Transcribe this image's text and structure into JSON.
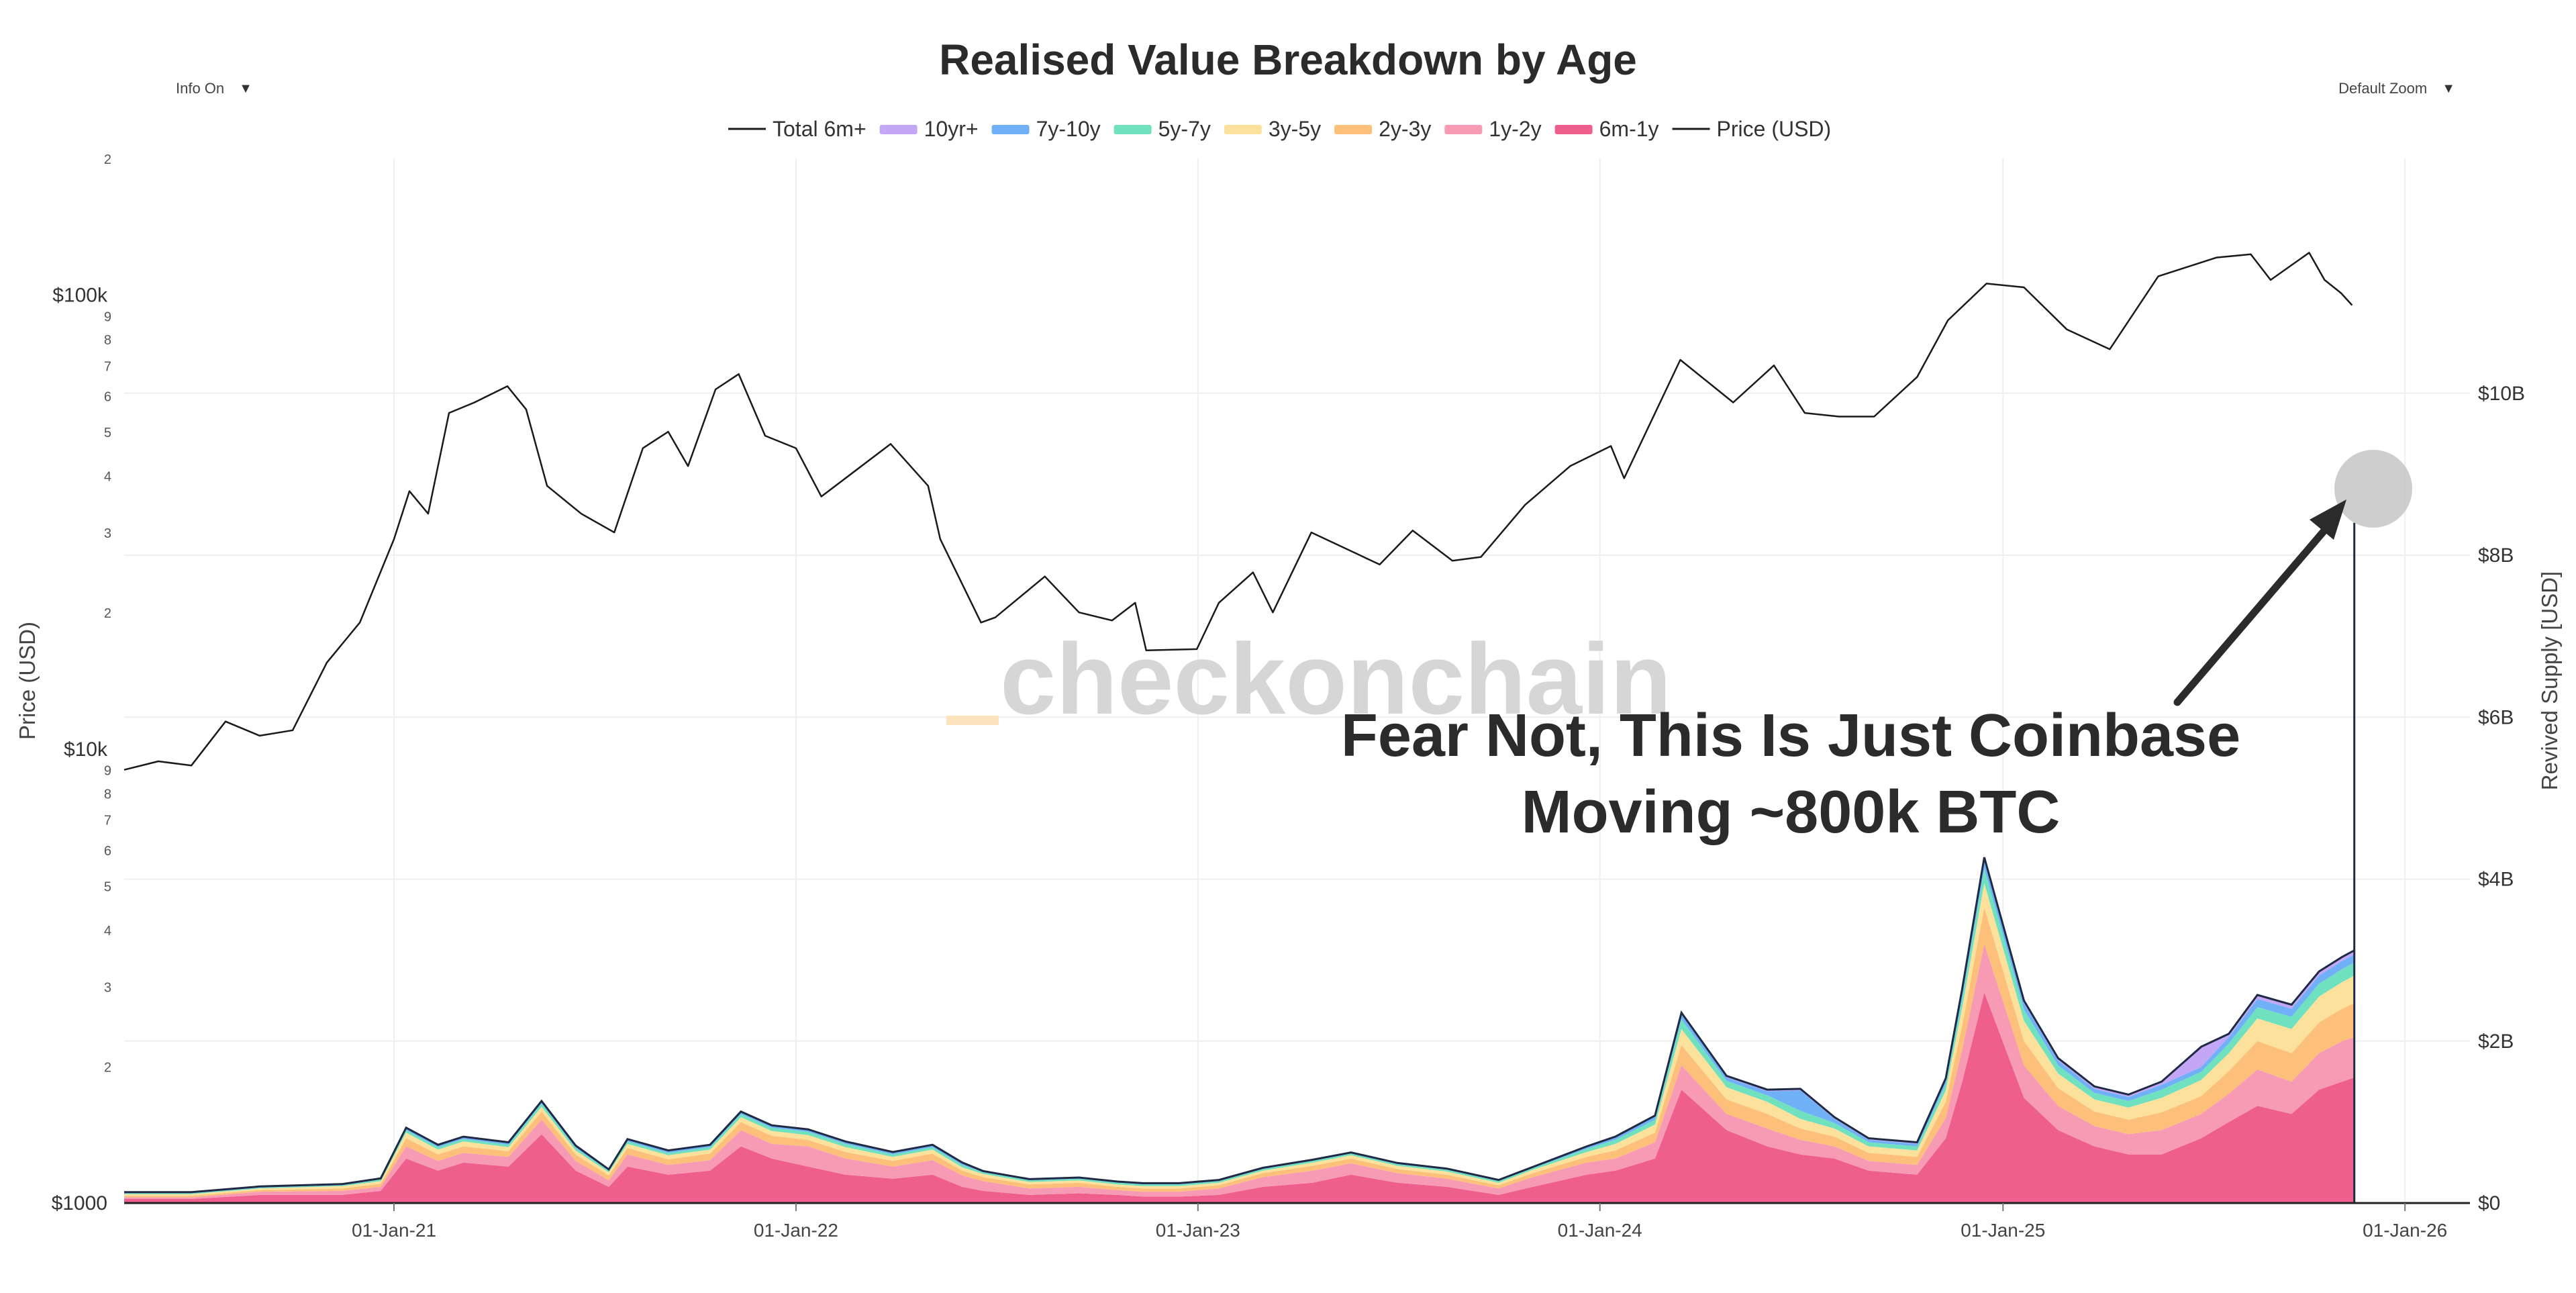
{
  "controls": {
    "info_toggle_label": "Info On",
    "zoom_label": "Default Zoom",
    "caret": "▼"
  },
  "watermark": "checkonchain",
  "annotation": {
    "line1": "Fear Not, This Is Just Coinbase",
    "line2": "Moving ~800k BTC"
  },
  "colors": {
    "price_line": "#1a1a1a",
    "total_line": "#1f2a44",
    "10yr+": "#c3a6f5",
    "7y-10y": "#6fb0f7",
    "5y-7y": "#6fe1bf",
    "3y-5y": "#fbe19b",
    "2y-3y": "#fcc07b",
    "1y-2y": "#f79bb5",
    "6m-1y": "#ee5f8e",
    "grid": "#efefef",
    "highlight_circle": "#bdbdbd",
    "arrow": "#2b2b2b",
    "watermark": "#d6d6d6",
    "watermark_accent": "#fde3bd"
  },
  "chart_data": {
    "type": "area",
    "title": "Realised Value Breakdown by Age",
    "legend": [
      {
        "name": "Total 6m+",
        "style": "line"
      },
      {
        "name": "10yr+",
        "style": "area"
      },
      {
        "name": "7y-10y",
        "style": "area"
      },
      {
        "name": "5y-7y",
        "style": "area"
      },
      {
        "name": "3y-5y",
        "style": "area"
      },
      {
        "name": "2y-3y",
        "style": "area"
      },
      {
        "name": "1y-2y",
        "style": "area"
      },
      {
        "name": "6m-1y",
        "style": "area"
      },
      {
        "name": "Price (USD)",
        "style": "line"
      }
    ],
    "legend_placement": "top-center",
    "x_axis": {
      "type": "date",
      "range": [
        "2020-05-01",
        "2026-03-01"
      ],
      "tick_labels": [
        "01-Jan-21",
        "01-Jan-22",
        "01-Jan-23",
        "01-Jan-24",
        "01-Jan-25",
        "01-Jan-26"
      ],
      "tick_dates": [
        "2021-01-01",
        "2022-01-01",
        "2023-01-01",
        "2024-01-01",
        "2025-01-01",
        "2026-01-01"
      ]
    },
    "y_left": {
      "label": "Price (USD)",
      "scale": "log",
      "range": [
        1000,
        200000
      ],
      "major_ticks": [
        {
          "value": 1000,
          "label": "$1000"
        },
        {
          "value": 10000,
          "label": "$10k"
        },
        {
          "value": 100000,
          "label": "$100k"
        }
      ],
      "minor_ticks": [
        {
          "value": 2000,
          "label": "2"
        },
        {
          "value": 3000,
          "label": "3"
        },
        {
          "value": 4000,
          "label": "4"
        },
        {
          "value": 5000,
          "label": "5"
        },
        {
          "value": 6000,
          "label": "6"
        },
        {
          "value": 7000,
          "label": "7"
        },
        {
          "value": 8000,
          "label": "8"
        },
        {
          "value": 9000,
          "label": "9"
        },
        {
          "value": 20000,
          "label": "2"
        },
        {
          "value": 30000,
          "label": "3"
        },
        {
          "value": 40000,
          "label": "4"
        },
        {
          "value": 50000,
          "label": "5"
        },
        {
          "value": 60000,
          "label": "6"
        },
        {
          "value": 70000,
          "label": "7"
        },
        {
          "value": 80000,
          "label": "8"
        },
        {
          "value": 90000,
          "label": "9"
        },
        {
          "value": 200000,
          "label": "2"
        }
      ]
    },
    "y_right": {
      "label": "Revived Supply [USD]",
      "scale": "linear",
      "range": [
        0,
        12.9
      ],
      "unit": "billion USD",
      "ticks": [
        {
          "value": 0,
          "label": "$0"
        },
        {
          "value": 2,
          "label": "$2B"
        },
        {
          "value": 4,
          "label": "$4B"
        },
        {
          "value": 6,
          "label": "$6B"
        },
        {
          "value": 8,
          "label": "$8B"
        },
        {
          "value": 10,
          "label": "$10B"
        }
      ]
    },
    "grid": true,
    "price_series": {
      "name": "Price (USD)",
      "points": [
        [
          "2020-05-01",
          9000
        ],
        [
          "2020-06-01",
          9400
        ],
        [
          "2020-07-01",
          9200
        ],
        [
          "2020-08-01",
          11500
        ],
        [
          "2020-09-01",
          10700
        ],
        [
          "2020-10-01",
          11000
        ],
        [
          "2020-11-01",
          15500
        ],
        [
          "2020-12-01",
          19000
        ],
        [
          "2021-01-01",
          29000
        ],
        [
          "2021-01-15",
          37000
        ],
        [
          "2021-02-01",
          33000
        ],
        [
          "2021-02-20",
          55000
        ],
        [
          "2021-03-15",
          58000
        ],
        [
          "2021-04-14",
          63000
        ],
        [
          "2021-05-01",
          56000
        ],
        [
          "2021-05-20",
          38000
        ],
        [
          "2021-06-20",
          33000
        ],
        [
          "2021-07-20",
          30000
        ],
        [
          "2021-08-15",
          46000
        ],
        [
          "2021-09-07",
          50000
        ],
        [
          "2021-09-25",
          42000
        ],
        [
          "2021-10-20",
          62000
        ],
        [
          "2021-11-10",
          67000
        ],
        [
          "2021-12-04",
          49000
        ],
        [
          "2022-01-01",
          46000
        ],
        [
          "2022-01-24",
          36000
        ],
        [
          "2022-03-28",
          47000
        ],
        [
          "2022-05-01",
          38000
        ],
        [
          "2022-05-12",
          29000
        ],
        [
          "2022-06-18",
          19000
        ],
        [
          "2022-07-01",
          19500
        ],
        [
          "2022-08-15",
          24000
        ],
        [
          "2022-09-15",
          20000
        ],
        [
          "2022-10-15",
          19200
        ],
        [
          "2022-11-05",
          21000
        ],
        [
          "2022-11-15",
          16500
        ],
        [
          "2022-12-31",
          16600
        ],
        [
          "2023-01-20",
          21000
        ],
        [
          "2023-02-20",
          24500
        ],
        [
          "2023-03-10",
          20000
        ],
        [
          "2023-04-14",
          30000
        ],
        [
          "2023-06-15",
          25500
        ],
        [
          "2023-07-15",
          30300
        ],
        [
          "2023-08-20",
          26000
        ],
        [
          "2023-09-15",
          26500
        ],
        [
          "2023-10-25",
          34500
        ],
        [
          "2023-12-05",
          42000
        ],
        [
          "2024-01-11",
          46500
        ],
        [
          "2024-01-23",
          39500
        ],
        [
          "2024-03-14",
          72000
        ],
        [
          "2024-05-01",
          58000
        ],
        [
          "2024-06-07",
          70000
        ],
        [
          "2024-07-05",
          55000
        ],
        [
          "2024-08-05",
          54000
        ],
        [
          "2024-09-06",
          54000
        ],
        [
          "2024-10-15",
          66000
        ],
        [
          "2024-11-12",
          88000
        ],
        [
          "2024-12-17",
          106000
        ],
        [
          "2025-01-20",
          104000
        ],
        [
          "2025-02-28",
          84000
        ],
        [
          "2025-04-08",
          76000
        ],
        [
          "2025-05-22",
          110000
        ],
        [
          "2025-07-14",
          121000
        ],
        [
          "2025-08-14",
          123000
        ],
        [
          "2025-09-01",
          108000
        ],
        [
          "2025-10-06",
          124000
        ],
        [
          "2025-10-20",
          108000
        ],
        [
          "2025-11-04",
          101000
        ],
        [
          "2025-11-14",
          95000
        ]
      ]
    },
    "stack_series_order": [
      "6m-1y",
      "1y-2y",
      "2y-3y",
      "3y-5y",
      "5y-7y",
      "7y-10y",
      "10yr+"
    ],
    "revived_series": {
      "unit": "billion USD",
      "dates": [
        "2020-05-01",
        "2020-07-01",
        "2020-09-01",
        "2020-11-15",
        "2020-12-20",
        "2021-01-12",
        "2021-02-10",
        "2021-03-05",
        "2021-04-15",
        "2021-05-15",
        "2021-06-15",
        "2021-07-15",
        "2021-08-01",
        "2021-09-07",
        "2021-10-15",
        "2021-11-12",
        "2021-12-10",
        "2022-01-12",
        "2022-02-15",
        "2022-03-30",
        "2022-05-05",
        "2022-06-01",
        "2022-06-20",
        "2022-08-01",
        "2022-09-15",
        "2022-10-20",
        "2022-11-12",
        "2022-12-15",
        "2023-01-20",
        "2023-03-01",
        "2023-04-15",
        "2023-05-20",
        "2023-07-01",
        "2023-08-15",
        "2023-10-01",
        "2023-11-01",
        "2023-12-20",
        "2024-01-15",
        "2024-02-20",
        "2024-03-15",
        "2024-04-25",
        "2024-06-01",
        "2024-07-01",
        "2024-08-01",
        "2024-09-01",
        "2024-10-15",
        "2024-11-10",
        "2024-11-25",
        "2024-12-15",
        "2025-01-20",
        "2025-02-20",
        "2025-03-25",
        "2025-04-25",
        "2025-05-25",
        "2025-06-30",
        "2025-07-25",
        "2025-08-20",
        "2025-09-20",
        "2025-10-15",
        "2025-11-05",
        "2025-11-16"
      ],
      "6m-1y": [
        0.05,
        0.05,
        0.1,
        0.1,
        0.15,
        0.55,
        0.4,
        0.5,
        0.45,
        0.85,
        0.4,
        0.2,
        0.45,
        0.35,
        0.4,
        0.7,
        0.55,
        0.45,
        0.35,
        0.3,
        0.35,
        0.2,
        0.15,
        0.1,
        0.12,
        0.1,
        0.08,
        0.08,
        0.1,
        0.2,
        0.25,
        0.35,
        0.25,
        0.2,
        0.1,
        0.2,
        0.35,
        0.4,
        0.55,
        1.4,
        0.9,
        0.7,
        0.6,
        0.55,
        0.4,
        0.35,
        0.8,
        1.5,
        2.6,
        1.3,
        0.9,
        0.7,
        0.6,
        0.6,
        0.8,
        1.0,
        1.2,
        1.1,
        1.4,
        1.5,
        1.55
      ],
      "1y-2y": [
        0.02,
        0.02,
        0.04,
        0.05,
        0.05,
        0.15,
        0.12,
        0.12,
        0.12,
        0.18,
        0.12,
        0.08,
        0.15,
        0.12,
        0.13,
        0.2,
        0.18,
        0.25,
        0.2,
        0.15,
        0.18,
        0.14,
        0.12,
        0.08,
        0.08,
        0.06,
        0.06,
        0.06,
        0.08,
        0.12,
        0.15,
        0.14,
        0.12,
        0.1,
        0.08,
        0.12,
        0.15,
        0.15,
        0.2,
        0.3,
        0.2,
        0.22,
        0.18,
        0.15,
        0.12,
        0.12,
        0.25,
        0.4,
        0.6,
        0.4,
        0.3,
        0.25,
        0.25,
        0.3,
        0.3,
        0.35,
        0.45,
        0.4,
        0.45,
        0.5,
        0.5
      ],
      "2y-3y": [
        0.02,
        0.02,
        0.02,
        0.03,
        0.04,
        0.1,
        0.08,
        0.08,
        0.07,
        0.1,
        0.08,
        0.06,
        0.08,
        0.07,
        0.08,
        0.1,
        0.1,
        0.08,
        0.08,
        0.07,
        0.08,
        0.06,
        0.05,
        0.05,
        0.05,
        0.04,
        0.04,
        0.04,
        0.04,
        0.05,
        0.06,
        0.06,
        0.05,
        0.05,
        0.04,
        0.05,
        0.07,
        0.1,
        0.12,
        0.25,
        0.18,
        0.18,
        0.14,
        0.12,
        0.1,
        0.1,
        0.2,
        0.3,
        0.45,
        0.3,
        0.22,
        0.18,
        0.18,
        0.22,
        0.22,
        0.28,
        0.35,
        0.35,
        0.38,
        0.4,
        0.42
      ],
      "3y-5y": [
        0.02,
        0.02,
        0.02,
        0.03,
        0.03,
        0.07,
        0.06,
        0.06,
        0.05,
        0.06,
        0.05,
        0.04,
        0.05,
        0.05,
        0.05,
        0.06,
        0.06,
        0.06,
        0.06,
        0.05,
        0.05,
        0.04,
        0.04,
        0.03,
        0.03,
        0.03,
        0.03,
        0.03,
        0.03,
        0.03,
        0.04,
        0.04,
        0.04,
        0.04,
        0.03,
        0.04,
        0.06,
        0.08,
        0.1,
        0.2,
        0.15,
        0.15,
        0.12,
        0.1,
        0.08,
        0.08,
        0.14,
        0.22,
        0.3,
        0.25,
        0.18,
        0.15,
        0.15,
        0.18,
        0.2,
        0.22,
        0.28,
        0.3,
        0.32,
        0.33,
        0.34
      ],
      "5y-7y": [
        0.01,
        0.01,
        0.01,
        0.01,
        0.02,
        0.03,
        0.03,
        0.03,
        0.03,
        0.04,
        0.03,
        0.02,
        0.03,
        0.03,
        0.03,
        0.04,
        0.04,
        0.04,
        0.04,
        0.03,
        0.03,
        0.03,
        0.02,
        0.02,
        0.02,
        0.02,
        0.02,
        0.02,
        0.02,
        0.02,
        0.02,
        0.02,
        0.02,
        0.02,
        0.02,
        0.02,
        0.04,
        0.05,
        0.06,
        0.12,
        0.08,
        0.08,
        0.1,
        0.07,
        0.05,
        0.05,
        0.08,
        0.12,
        0.18,
        0.14,
        0.1,
        0.08,
        0.08,
        0.1,
        0.1,
        0.12,
        0.14,
        0.15,
        0.16,
        0.16,
        0.16
      ],
      "7y-10y": [
        0.01,
        0.01,
        0.01,
        0.01,
        0.01,
        0.02,
        0.02,
        0.02,
        0.02,
        0.02,
        0.02,
        0.01,
        0.02,
        0.02,
        0.02,
        0.02,
        0.02,
        0.02,
        0.02,
        0.02,
        0.02,
        0.02,
        0.01,
        0.01,
        0.01,
        0.01,
        0.01,
        0.01,
        0.01,
        0.01,
        0.01,
        0.01,
        0.01,
        0.01,
        0.01,
        0.01,
        0.02,
        0.03,
        0.04,
        0.06,
        0.04,
        0.05,
        0.25,
        0.05,
        0.03,
        0.03,
        0.05,
        0.08,
        0.1,
        0.08,
        0.06,
        0.05,
        0.05,
        0.06,
        0.06,
        0.08,
        0.1,
        0.1,
        0.1,
        0.1,
        0.1
      ],
      "10yr+": [
        0.005,
        0.005,
        0.005,
        0.005,
        0.005,
        0.01,
        0.01,
        0.01,
        0.01,
        0.01,
        0.01,
        0.005,
        0.01,
        0.01,
        0.01,
        0.01,
        0.01,
        0.01,
        0.01,
        0.01,
        0.01,
        0.01,
        0.005,
        0.005,
        0.005,
        0.005,
        0.005,
        0.005,
        0.005,
        0.005,
        0.005,
        0.005,
        0.005,
        0.005,
        0.005,
        0.005,
        0.01,
        0.01,
        0.01,
        0.02,
        0.02,
        0.02,
        0.02,
        0.02,
        0.02,
        0.02,
        0.02,
        0.03,
        0.04,
        0.03,
        0.03,
        0.03,
        0.03,
        0.04,
        0.25,
        0.04,
        0.05,
        0.05,
        0.05,
        0.05,
        0.05
      ]
    },
    "spike": {
      "date": "2025-11-16",
      "value": 8.4
    }
  }
}
